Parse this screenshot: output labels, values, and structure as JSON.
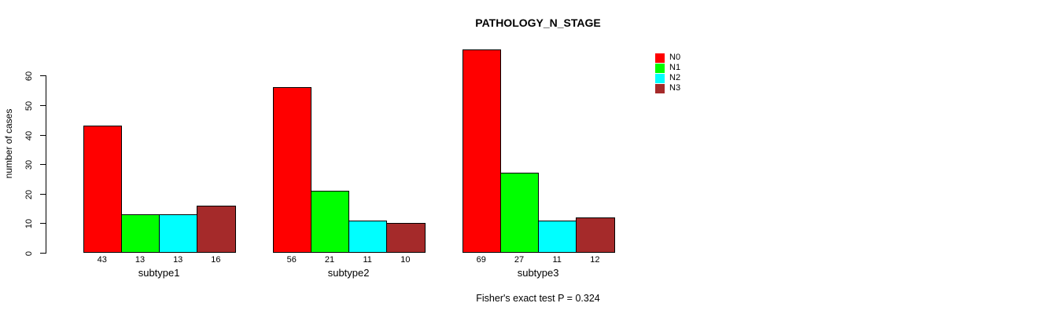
{
  "chart_data": {
    "type": "bar",
    "title": "PATHOLOGY_N_STAGE",
    "xlabel": "",
    "ylabel": "number of cases",
    "categories": [
      "subtype1",
      "subtype2",
      "subtype3"
    ],
    "series": [
      {
        "name": "N0",
        "color": "#ff0000",
        "values": [
          43,
          56,
          69
        ]
      },
      {
        "name": "N1",
        "color": "#00ff00",
        "values": [
          13,
          21,
          27
        ]
      },
      {
        "name": "N2",
        "color": "#00ffff",
        "values": [
          13,
          11,
          11
        ]
      },
      {
        "name": "N3",
        "color": "#a52a2a",
        "values": [
          16,
          10,
          12
        ]
      }
    ],
    "ylim": [
      0,
      60
    ],
    "yticks": [
      0,
      10,
      20,
      30,
      40,
      50,
      60
    ],
    "grid": false,
    "bar_border_color": "#000000",
    "legend": {
      "position": "top-right",
      "entries": [
        {
          "label": "N0",
          "color": "#ff0000"
        },
        {
          "label": "N1",
          "color": "#00ff00"
        },
        {
          "label": "N2",
          "color": "#00ffff"
        },
        {
          "label": "N3",
          "color": "#a52a2a"
        }
      ]
    },
    "annotation": "Fisher's exact test P = 0.324"
  }
}
